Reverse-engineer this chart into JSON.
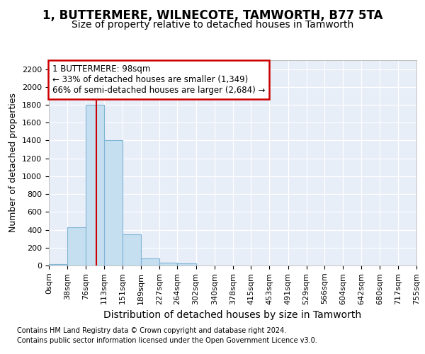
{
  "title": "1, BUTTERMERE, WILNECOTE, TAMWORTH, B77 5TA",
  "subtitle": "Size of property relative to detached houses in Tamworth",
  "xlabel": "Distribution of detached houses by size in Tamworth",
  "ylabel": "Number of detached properties",
  "footnote1": "Contains HM Land Registry data © Crown copyright and database right 2024.",
  "footnote2": "Contains public sector information licensed under the Open Government Licence v3.0.",
  "annotation_line1": "1 BUTTERMERE: 98sqm",
  "annotation_line2": "← 33% of detached houses are smaller (1,349)",
  "annotation_line3": "66% of semi-detached houses are larger (2,684) →",
  "bin_edges": [
    0,
    38,
    76,
    113,
    151,
    189,
    227,
    264,
    302,
    340,
    378,
    415,
    453,
    491,
    529,
    566,
    604,
    642,
    680,
    717,
    755
  ],
  "bin_counts": [
    15,
    430,
    1800,
    1400,
    350,
    80,
    30,
    20,
    0,
    0,
    0,
    0,
    0,
    0,
    0,
    0,
    0,
    0,
    0,
    0
  ],
  "bar_color": "#c5dff0",
  "bar_edgecolor": "#7fb5d5",
  "vline_color": "#cc0000",
  "vline_x": 98,
  "annotation_box_edgecolor": "#cc0000",
  "annotation_box_facecolor": "#ffffff",
  "ylim": [
    0,
    2300
  ],
  "yticks": [
    0,
    200,
    400,
    600,
    800,
    1000,
    1200,
    1400,
    1600,
    1800,
    2000,
    2200
  ],
  "background_color": "#e8eef8",
  "title_fontsize": 12,
  "subtitle_fontsize": 10,
  "xlabel_fontsize": 10,
  "ylabel_fontsize": 9,
  "tick_fontsize": 8,
  "footnote_fontsize": 7
}
